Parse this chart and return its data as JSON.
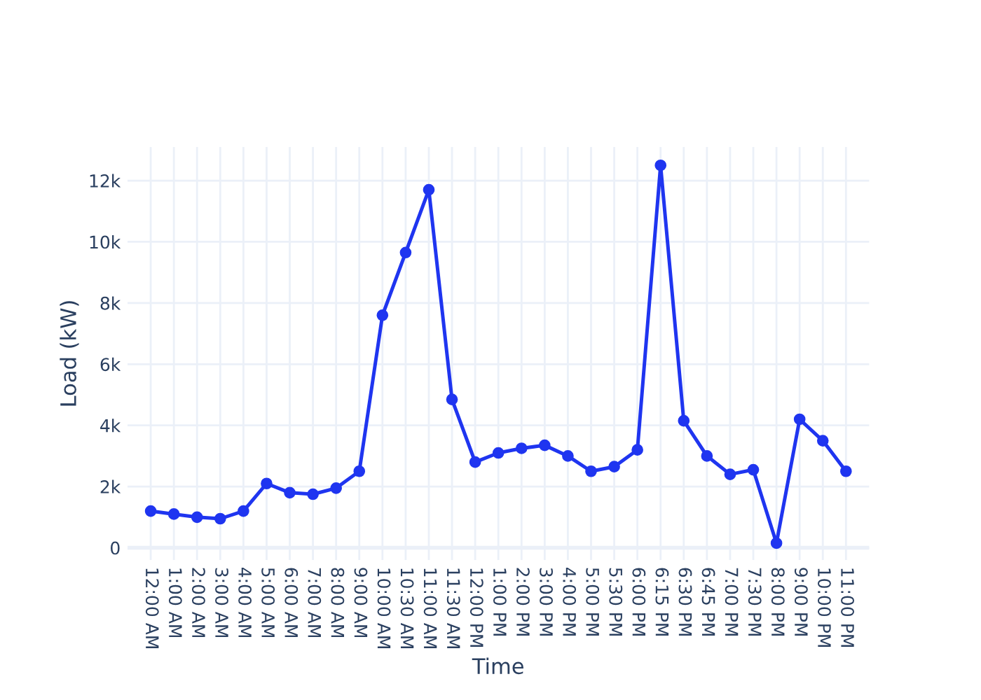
{
  "chart_data": {
    "type": "line",
    "xlabel": "Time",
    "ylabel": "Load (kW)",
    "categories": [
      "12:00 AM",
      "1:00 AM",
      "2:00 AM",
      "3:00 AM",
      "4:00 AM",
      "5:00 AM",
      "6:00 AM",
      "7:00 AM",
      "8:00 AM",
      "9:00 AM",
      "10:00 AM",
      "10:30 AM",
      "11:00 AM",
      "11:30 AM",
      "12:00 PM",
      "1:00 PM",
      "2:00 PM",
      "3:00 PM",
      "4:00 PM",
      "5:00 PM",
      "5:30 PM",
      "6:00 PM",
      "6:15 PM",
      "6:30 PM",
      "6:45 PM",
      "7:00 PM",
      "7:30 PM",
      "8:00 PM",
      "9:00 PM",
      "10:00 PM",
      "11:00 PM"
    ],
    "series": [
      {
        "color": "#1f35f0",
        "values": [
          1200,
          1100,
          1000,
          950,
          1200,
          2100,
          1800,
          1750,
          1950,
          2500,
          7600,
          9650,
          11700,
          4850,
          2800,
          3100,
          3250,
          3350,
          3000,
          2500,
          2650,
          3200,
          12500,
          4150,
          3000,
          2400,
          2550,
          150,
          4200,
          3500,
          2500
        ]
      }
    ],
    "ylim": [
      -400,
      13100
    ],
    "yticks": [
      0,
      {
        "value": 2000,
        "label": "2k"
      },
      {
        "value": 4000,
        "label": "4k"
      },
      {
        "value": 6000,
        "label": "6k"
      },
      {
        "value": 8000,
        "label": "8k"
      },
      {
        "value": 10000,
        "label": "10k"
      },
      {
        "value": 12000,
        "label": "12k"
      }
    ],
    "grid": true,
    "marker": "circle",
    "line_style": "solid"
  }
}
